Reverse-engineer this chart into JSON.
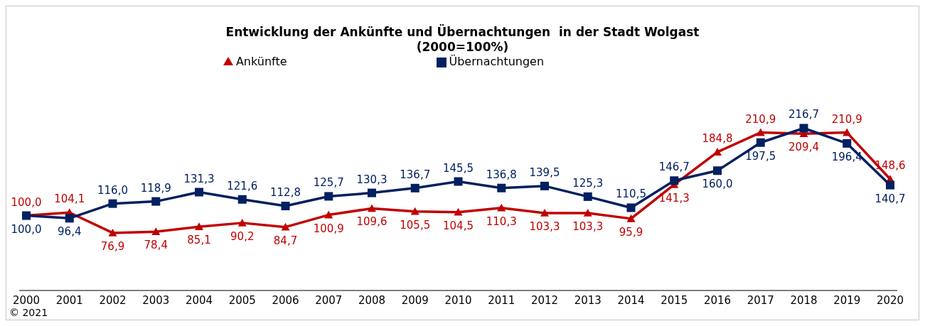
{
  "chart_data": {
    "type": "line",
    "title": "Entwicklung der Ankünfte und Übernachtungen  in der Stadt Wolgast",
    "subtitle": "(2000=100%)",
    "categories": [
      "2000",
      "2001",
      "2002",
      "2003",
      "2004",
      "2005",
      "2006",
      "2007",
      "2008",
      "2009",
      "2010",
      "2011",
      "2012",
      "2013",
      "2014",
      "2015",
      "2016",
      "2017",
      "2018",
      "2019",
      "2020"
    ],
    "series": [
      {
        "name": "Ankünfte",
        "color": "#c00000",
        "marker": "triangle",
        "values": [
          100.0,
          104.1,
          76.9,
          78.4,
          85.1,
          90.2,
          84.7,
          100.9,
          109.6,
          105.5,
          104.5,
          110.3,
          103.3,
          103.3,
          95.9,
          141.3,
          184.8,
          210.9,
          209.4,
          210.9,
          148.6
        ],
        "value_labels": [
          "100,0",
          "104,1",
          "76,9",
          "78,4",
          "85,1",
          "90,2",
          "84,7",
          "100,9",
          "109,6",
          "105,5",
          "104,5",
          "110,3",
          "103,3",
          "103,3",
          "95,9",
          "141,3",
          "184,8",
          "210,9",
          "209,4",
          "210,9",
          "148,6"
        ]
      },
      {
        "name": "Übernachtungen",
        "color": "#002060",
        "marker": "square",
        "values": [
          100.0,
          96.4,
          116.0,
          118.9,
          131.3,
          121.6,
          112.8,
          125.7,
          130.3,
          136.7,
          145.5,
          136.8,
          139.5,
          125.3,
          110.5,
          146.7,
          160.0,
          197.5,
          216.7,
          196.4,
          140.7
        ],
        "value_labels": [
          "100,0",
          "96,4",
          "116,0",
          "118,9",
          "131,3",
          "121,6",
          "112,8",
          "125,7",
          "130,3",
          "136,7",
          "145,5",
          "136,8",
          "139,5",
          "125,3",
          "110,5",
          "146,7",
          "160,0",
          "197,5",
          "216,7",
          "196,4",
          "140,7"
        ]
      }
    ],
    "legend": "top",
    "grid": false,
    "tick_labels": "x",
    "annotations": [
      "© 2021"
    ]
  }
}
